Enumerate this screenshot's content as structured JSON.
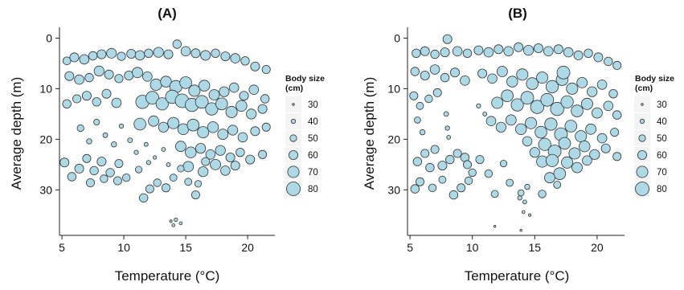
{
  "chart_data": [
    {
      "type": "scatter",
      "title": "(A)",
      "xlabel": "Temperature (°C)",
      "ylabel": "Average depth (m)",
      "xlim": [
        4.8,
        22.2
      ],
      "ylim": [
        39,
        -1.5
      ],
      "x_ticks": [
        5,
        10,
        15,
        20
      ],
      "y_ticks": [
        0,
        10,
        20,
        30
      ],
      "y_axis_reversed": true,
      "grid": false,
      "legend_position": "right",
      "marker_fill": "#add8e6",
      "marker_edge": "#333333",
      "size_legend": {
        "title_line1": "Body size",
        "title_line2": "(cm)",
        "values": [
          30,
          40,
          50,
          60,
          70,
          80
        ],
        "labels": [
          "30",
          "40",
          "50",
          "60",
          "70",
          "80"
        ]
      },
      "points": [
        [
          5.4,
          4.5,
          55
        ],
        [
          6.0,
          3.8,
          60
        ],
        [
          6.8,
          4.2,
          62
        ],
        [
          7.5,
          3.5,
          58
        ],
        [
          8.2,
          3.2,
          60
        ],
        [
          9.0,
          3.0,
          63
        ],
        [
          9.8,
          3.6,
          57
        ],
        [
          10.6,
          3.1,
          60
        ],
        [
          11.3,
          3.4,
          62
        ],
        [
          12.0,
          3.0,
          58
        ],
        [
          12.8,
          2.8,
          64
        ],
        [
          13.6,
          3.2,
          60
        ],
        [
          14.3,
          1.2,
          58
        ],
        [
          15.0,
          2.6,
          62
        ],
        [
          15.8,
          3.0,
          60
        ],
        [
          16.6,
          3.4,
          63
        ],
        [
          17.4,
          3.0,
          58
        ],
        [
          18.2,
          3.6,
          60
        ],
        [
          19.0,
          4.0,
          62
        ],
        [
          19.8,
          4.5,
          58
        ],
        [
          20.6,
          5.6,
          60
        ],
        [
          21.5,
          6.2,
          56
        ],
        [
          5.6,
          7.5,
          60
        ],
        [
          6.4,
          8.2,
          62
        ],
        [
          7.2,
          7.8,
          58
        ],
        [
          8.0,
          6.5,
          64
        ],
        [
          8.8,
          7.2,
          60
        ],
        [
          9.6,
          8.0,
          57
        ],
        [
          10.4,
          7.4,
          60
        ],
        [
          11.1,
          6.8,
          66
        ],
        [
          11.9,
          7.6,
          62
        ],
        [
          12.6,
          9.2,
          70
        ],
        [
          13.4,
          8.6,
          68
        ],
        [
          14.2,
          9.6,
          74
        ],
        [
          15.0,
          8.8,
          72
        ],
        [
          15.7,
          10.4,
          70
        ],
        [
          16.5,
          9.4,
          68
        ],
        [
          17.3,
          11.2,
          66
        ],
        [
          18.1,
          10.6,
          64
        ],
        [
          18.9,
          9.8,
          62
        ],
        [
          19.7,
          11.4,
          60
        ],
        [
          20.5,
          10.2,
          62
        ],
        [
          21.4,
          12.0,
          58
        ],
        [
          5.4,
          13.0,
          58
        ],
        [
          6.2,
          12.0,
          56
        ],
        [
          7.0,
          11.4,
          60
        ],
        [
          7.8,
          12.6,
          58
        ],
        [
          8.6,
          11.0,
          60
        ],
        [
          9.4,
          12.8,
          62
        ],
        [
          11.5,
          12.6,
          78
        ],
        [
          12.3,
          11.8,
          76
        ],
        [
          13.1,
          13.0,
          74
        ],
        [
          13.9,
          11.6,
          78
        ],
        [
          14.7,
          12.4,
          80
        ],
        [
          15.5,
          13.2,
          78
        ],
        [
          16.3,
          12.6,
          76
        ],
        [
          17.1,
          14.0,
          74
        ],
        [
          17.9,
          13.0,
          72
        ],
        [
          18.7,
          14.6,
          70
        ],
        [
          19.5,
          13.4,
          68
        ],
        [
          20.3,
          15.0,
          64
        ],
        [
          21.2,
          14.0,
          60
        ],
        [
          11.3,
          17.0,
          72
        ],
        [
          12.4,
          16.4,
          66
        ],
        [
          13.2,
          17.6,
          64
        ],
        [
          14.0,
          16.8,
          70
        ],
        [
          14.8,
          18.0,
          68
        ],
        [
          15.6,
          17.2,
          72
        ],
        [
          16.4,
          18.6,
          70
        ],
        [
          17.2,
          17.6,
          68
        ],
        [
          18.0,
          19.0,
          66
        ],
        [
          18.8,
          18.2,
          64
        ],
        [
          19.6,
          19.6,
          62
        ],
        [
          20.6,
          18.4,
          60
        ],
        [
          21.5,
          17.6,
          56
        ],
        [
          6.5,
          17.8,
          50
        ],
        [
          7.2,
          20.4,
          44
        ],
        [
          7.8,
          16.6,
          46
        ],
        [
          8.5,
          19.2,
          42
        ],
        [
          9.2,
          21.0,
          44
        ],
        [
          9.8,
          17.4,
          40
        ],
        [
          10.5,
          20.2,
          42
        ],
        [
          11.0,
          22.6,
          40
        ],
        [
          11.8,
          21.0,
          38
        ],
        [
          12.5,
          23.6,
          36
        ],
        [
          13.2,
          22.0,
          38
        ],
        [
          14.6,
          21.4,
          66
        ],
        [
          15.4,
          22.6,
          68
        ],
        [
          16.2,
          21.8,
          64
        ],
        [
          17.0,
          23.0,
          62
        ],
        [
          17.8,
          22.2,
          64
        ],
        [
          18.6,
          23.6,
          60
        ],
        [
          19.4,
          22.6,
          58
        ],
        [
          20.2,
          24.0,
          60
        ],
        [
          21.2,
          23.0,
          56
        ],
        [
          15.2,
          25.4,
          66
        ],
        [
          16.4,
          26.4,
          64
        ],
        [
          17.4,
          25.0,
          66
        ],
        [
          18.2,
          26.2,
          62
        ],
        [
          19.0,
          25.2,
          60
        ],
        [
          5.2,
          24.6,
          60
        ],
        [
          5.8,
          27.4,
          58
        ],
        [
          6.4,
          25.8,
          60
        ],
        [
          7.0,
          23.8,
          56
        ],
        [
          7.6,
          26.2,
          58
        ],
        [
          8.2,
          24.4,
          60
        ],
        [
          8.9,
          26.6,
          58
        ],
        [
          9.6,
          24.8,
          56
        ],
        [
          10.2,
          27.6,
          54
        ],
        [
          7.3,
          28.6,
          56
        ],
        [
          8.4,
          27.8,
          54
        ],
        [
          9.5,
          28.2,
          56
        ],
        [
          11.2,
          26.0,
          50
        ],
        [
          11.6,
          31.6,
          58
        ],
        [
          12.1,
          29.8,
          56
        ],
        [
          12.7,
          28.6,
          54
        ],
        [
          13.4,
          29.6,
          56
        ],
        [
          14.0,
          27.6,
          52
        ],
        [
          14.6,
          25.8,
          50
        ],
        [
          15.2,
          28.4,
          52
        ],
        [
          15.8,
          31.0,
          56
        ],
        [
          14.2,
          35.9,
          36
        ],
        [
          14.6,
          36.6,
          34
        ],
        [
          14.0,
          37.0,
          34
        ],
        [
          13.8,
          36.2,
          32
        ],
        [
          13.6,
          25.0,
          38
        ],
        [
          12.0,
          24.6,
          40
        ],
        [
          16.0,
          28.8,
          50
        ],
        [
          16.6,
          24.4,
          56
        ]
      ]
    },
    {
      "type": "scatter",
      "title": "(B)",
      "xlabel": "Temperature (°C)",
      "ylabel": "Average depth (m)",
      "xlim": [
        4.8,
        22.2
      ],
      "ylim": [
        39,
        -1.5
      ],
      "x_ticks": [
        5,
        10,
        15,
        20
      ],
      "y_ticks": [
        0,
        10,
        20,
        30
      ],
      "y_axis_reversed": true,
      "grid": false,
      "legend_position": "right",
      "marker_fill": "#add8e6",
      "marker_edge": "#333333",
      "size_legend": {
        "title_line1": "Body size",
        "title_line2": "(cm)",
        "values": [
          30,
          40,
          50,
          60,
          70,
          80
        ],
        "labels": [
          "30",
          "40",
          "50",
          "60",
          "70",
          "80"
        ]
      },
      "points": [
        [
          5.5,
          3.0,
          58
        ],
        [
          6.2,
          2.6,
          60
        ],
        [
          7.0,
          3.2,
          58
        ],
        [
          7.8,
          2.8,
          60
        ],
        [
          8.0,
          0.2,
          60
        ],
        [
          8.8,
          2.6,
          62
        ],
        [
          9.6,
          3.0,
          58
        ],
        [
          10.5,
          2.4,
          60
        ],
        [
          11.3,
          2.8,
          62
        ],
        [
          12.1,
          2.2,
          60
        ],
        [
          12.9,
          2.6,
          62
        ],
        [
          13.7,
          1.8,
          60
        ],
        [
          14.5,
          2.4,
          64
        ],
        [
          15.3,
          2.0,
          60
        ],
        [
          16.1,
          2.6,
          62
        ],
        [
          16.9,
          2.2,
          60
        ],
        [
          17.7,
          2.8,
          62
        ],
        [
          18.5,
          3.4,
          60
        ],
        [
          19.3,
          3.0,
          58
        ],
        [
          20.1,
          3.8,
          60
        ],
        [
          20.9,
          4.6,
          58
        ],
        [
          21.6,
          5.4,
          56
        ],
        [
          5.4,
          6.6,
          58
        ],
        [
          6.2,
          7.4,
          60
        ],
        [
          7.0,
          6.2,
          62
        ],
        [
          7.8,
          7.8,
          58
        ],
        [
          8.6,
          6.8,
          60
        ],
        [
          9.4,
          8.4,
          62
        ],
        [
          10.8,
          7.0,
          60
        ],
        [
          11.6,
          8.0,
          62
        ],
        [
          12.4,
          6.6,
          66
        ],
        [
          13.2,
          8.6,
          68
        ],
        [
          14.0,
          7.2,
          70
        ],
        [
          14.8,
          9.0,
          72
        ],
        [
          15.6,
          7.8,
          70
        ],
        [
          16.4,
          9.6,
          74
        ],
        [
          17.2,
          8.2,
          72
        ],
        [
          17.3,
          6.8,
          76
        ],
        [
          18.0,
          10.0,
          70
        ],
        [
          18.8,
          8.8,
          66
        ],
        [
          19.6,
          10.6,
          64
        ],
        [
          20.4,
          9.2,
          62
        ],
        [
          21.3,
          11.0,
          58
        ],
        [
          5.3,
          11.4,
          56
        ],
        [
          5.8,
          13.4,
          52
        ],
        [
          6.5,
          12.0,
          54
        ],
        [
          7.2,
          10.8,
          56
        ],
        [
          12.0,
          12.8,
          70
        ],
        [
          12.8,
          11.4,
          72
        ],
        [
          13.6,
          13.2,
          74
        ],
        [
          14.4,
          11.8,
          76
        ],
        [
          15.2,
          13.6,
          78
        ],
        [
          16.0,
          12.2,
          76
        ],
        [
          16.8,
          14.0,
          78
        ],
        [
          17.6,
          12.6,
          74
        ],
        [
          18.4,
          14.4,
          72
        ],
        [
          19.2,
          13.0,
          70
        ],
        [
          20.0,
          14.8,
          66
        ],
        [
          20.9,
          13.4,
          62
        ],
        [
          21.6,
          15.2,
          58
        ],
        [
          11.5,
          16.4,
          62
        ],
        [
          12.3,
          17.6,
          64
        ],
        [
          13.1,
          16.2,
          66
        ],
        [
          13.9,
          18.0,
          68
        ],
        [
          14.7,
          16.8,
          70
        ],
        [
          15.5,
          18.6,
          72
        ],
        [
          16.3,
          17.0,
          74
        ],
        [
          17.1,
          19.0,
          76
        ],
        [
          17.9,
          17.4,
          72
        ],
        [
          18.7,
          19.4,
          70
        ],
        [
          19.5,
          18.0,
          66
        ],
        [
          20.4,
          19.8,
          62
        ],
        [
          21.4,
          18.6,
          56
        ],
        [
          5.6,
          16.2,
          48
        ],
        [
          6.0,
          18.6,
          44
        ],
        [
          7.9,
          15.0,
          42
        ],
        [
          8.0,
          17.8,
          40
        ],
        [
          8.1,
          19.6,
          38
        ],
        [
          10.5,
          13.4,
          40
        ],
        [
          11.0,
          15.0,
          38
        ],
        [
          15.8,
          21.0,
          74
        ],
        [
          16.6,
          22.4,
          76
        ],
        [
          17.4,
          20.8,
          72
        ],
        [
          18.2,
          22.8,
          70
        ],
        [
          19.0,
          21.4,
          68
        ],
        [
          19.8,
          23.0,
          64
        ],
        [
          20.7,
          21.8,
          60
        ],
        [
          21.6,
          23.4,
          56
        ],
        [
          14.4,
          20.4,
          62
        ],
        [
          15.0,
          22.6,
          64
        ],
        [
          15.6,
          24.4,
          70
        ],
        [
          16.4,
          24.2,
          74
        ],
        [
          17.0,
          26.8,
          72
        ],
        [
          17.6,
          24.6,
          70
        ],
        [
          16.2,
          27.6,
          66
        ],
        [
          18.4,
          25.6,
          66
        ],
        [
          19.2,
          24.2,
          62
        ],
        [
          5.6,
          24.4,
          58
        ],
        [
          6.2,
          22.8,
          56
        ],
        [
          6.6,
          25.6,
          58
        ],
        [
          7.0,
          22.0,
          56
        ],
        [
          7.6,
          25.2,
          60
        ],
        [
          8.2,
          24.0,
          58
        ],
        [
          8.8,
          22.8,
          56
        ],
        [
          9.4,
          23.6,
          58
        ],
        [
          9.6,
          25.0,
          56
        ],
        [
          10.0,
          26.6,
          54
        ],
        [
          5.4,
          29.8,
          58
        ],
        [
          5.8,
          28.4,
          56
        ],
        [
          6.8,
          29.6,
          54
        ],
        [
          7.6,
          28.0,
          52
        ],
        [
          8.5,
          31.0,
          58
        ],
        [
          9.1,
          29.6,
          56
        ],
        [
          9.7,
          28.2,
          54
        ],
        [
          10.6,
          24.0,
          56
        ],
        [
          11.3,
          26.8,
          54
        ],
        [
          11.8,
          30.8,
          52
        ],
        [
          12.5,
          24.8,
          50
        ],
        [
          13.0,
          28.6,
          52
        ],
        [
          13.9,
          30.6,
          48
        ],
        [
          14.2,
          32.4,
          38
        ],
        [
          13.8,
          31.6,
          40
        ],
        [
          14.1,
          34.4,
          34
        ],
        [
          14.6,
          35.0,
          32
        ],
        [
          11.8,
          37.2,
          30
        ],
        [
          13.9,
          38.0,
          30
        ],
        [
          14.4,
          29.4,
          44
        ],
        [
          15.6,
          30.8,
          54
        ],
        [
          16.8,
          29.0,
          52
        ]
      ]
    }
  ]
}
